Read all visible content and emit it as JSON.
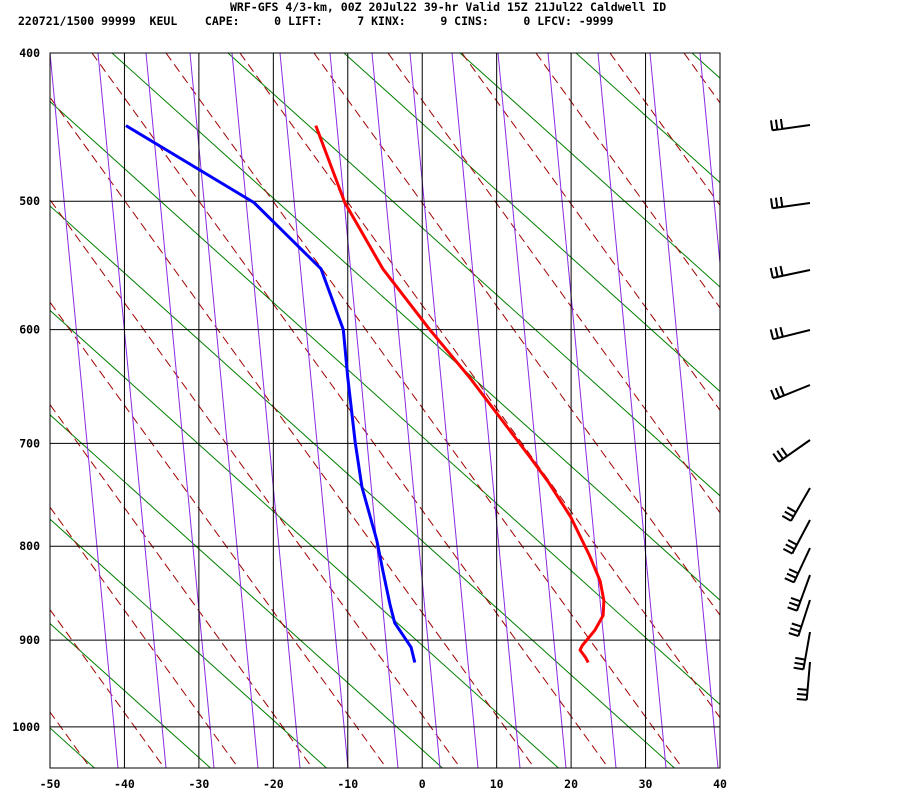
{
  "chart_data": {
    "type": "skewt",
    "title": "WRF-GFS 4/3-km, 00Z 20Jul22 39-hr Valid 15Z 21Jul22 Caldwell ID",
    "subtitle": "220721/1500 99999  KEUL    CAPE:     0 LIFT:     7 KINX:     9 CINS:     0 LFCV: -9999",
    "xlim": [
      -50,
      40
    ],
    "xticks": [
      -50,
      -40,
      -30,
      -20,
      -10,
      0,
      10,
      20,
      30,
      40
    ],
    "ylim": [
      1050,
      400
    ],
    "yticks": [
      400,
      500,
      600,
      700,
      800,
      900,
      1000
    ],
    "grid": true,
    "series": [
      {
        "color": "#ff0000",
        "x": [
          -14.3,
          -10.4,
          -5.3,
          1.0,
          6.4,
          14.5,
          16.9,
          19.9,
          22.5,
          23.9,
          24.4,
          24.3,
          23.2,
          21.5,
          21.2,
          21.9,
          22.3
        ],
        "y": [
          447,
          501,
          551,
          600,
          641,
          713,
          736,
          770,
          810,
          836,
          857,
          873,
          889,
          906,
          911,
          919,
          925
        ]
      },
      {
        "color": "#0000ff",
        "x": [
          -39.8,
          -22.6,
          -13.6,
          -10.6,
          -10.0,
          -9.0,
          -8.1,
          -7.0,
          -6.1,
          -5.3,
          -4.3,
          -3.7,
          -2.3,
          -1.5,
          -1.0
        ],
        "y": [
          447,
          501,
          551,
          600,
          641,
          699,
          741,
          770,
          794,
          825,
          862,
          881,
          898,
          908,
          925
        ]
      }
    ]
  }
}
